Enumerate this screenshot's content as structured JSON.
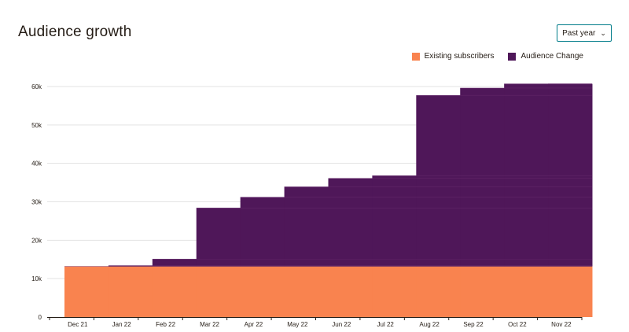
{
  "header": {
    "title": "Audience growth",
    "range_label": "Past year"
  },
  "legend": [
    {
      "label": "Existing subscribers",
      "color": "#f9834f"
    },
    {
      "label": "Audience Change",
      "color": "#4f1759"
    }
  ],
  "chart_data": {
    "type": "area",
    "stacked": true,
    "step": true,
    "categories": [
      "Dec 21",
      "Jan 22",
      "Feb 22",
      "Mar 22",
      "Apr 22",
      "May 22",
      "Jun 22",
      "Jul 22",
      "Aug 22",
      "Sep 22",
      "Oct 22",
      "Nov 22"
    ],
    "series": [
      {
        "name": "Existing subscribers",
        "color": "#f9834f",
        "values": [
          13200,
          13200,
          13200,
          13200,
          13200,
          13200,
          13200,
          13200,
          13200,
          13200,
          13200,
          13200
        ]
      },
      {
        "name": "Audience Change",
        "color": "#4f1759",
        "values": [
          0,
          200,
          1900,
          15200,
          18000,
          20700,
          22900,
          23600,
          44500,
          46400,
          47500,
          47500
        ]
      }
    ],
    "ylim": [
      0,
      60000
    ],
    "yticks": [
      0,
      10000,
      20000,
      30000,
      40000,
      50000,
      60000
    ],
    "ytick_labels": [
      "0",
      "10k",
      "20k",
      "30k",
      "40k",
      "50k",
      "60k"
    ],
    "grid": true,
    "legend_position": "top-right"
  }
}
